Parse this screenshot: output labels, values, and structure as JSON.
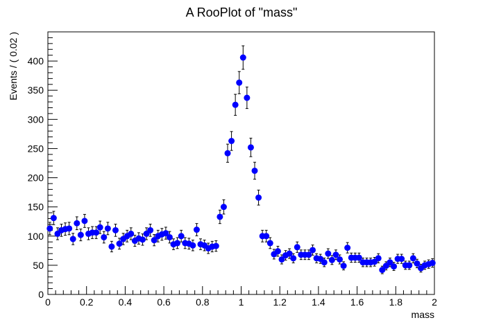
{
  "chart_data": {
    "type": "scatter",
    "title": "A RooPlot of \"mass\"",
    "xlabel": "mass",
    "ylabel": "Events / ( 0.02 )",
    "xlim": [
      0,
      2
    ],
    "ylim": [
      0,
      450
    ],
    "x_ticks": [
      "0",
      "0.2",
      "0.4",
      "0.6",
      "0.8",
      "1",
      "1.2",
      "1.4",
      "1.6",
      "1.8",
      "2"
    ],
    "y_ticks": [
      "0",
      "50",
      "100",
      "150",
      "200",
      "250",
      "300",
      "350",
      "400"
    ],
    "grid": false,
    "legend": "none",
    "marker_color": "#0000ff",
    "error_bar_color": "#000000",
    "series": [
      {
        "x": [
          0.01,
          0.03,
          0.05,
          0.07,
          0.09,
          0.11,
          0.13,
          0.15,
          0.17,
          0.19,
          0.21,
          0.23,
          0.25,
          0.27,
          0.29,
          0.31,
          0.33,
          0.35,
          0.37,
          0.39,
          0.41,
          0.43,
          0.45,
          0.47,
          0.49,
          0.51,
          0.53,
          0.55,
          0.57,
          0.59,
          0.61,
          0.63,
          0.65,
          0.67,
          0.69,
          0.71,
          0.73,
          0.75,
          0.77,
          0.79,
          0.81,
          0.83,
          0.85,
          0.87,
          0.89,
          0.91,
          0.93,
          0.95,
          0.97,
          0.99,
          1.01,
          1.03,
          1.05,
          1.07,
          1.09,
          1.11,
          1.13,
          1.15,
          1.17,
          1.19,
          1.21,
          1.23,
          1.25,
          1.27,
          1.29,
          1.31,
          1.33,
          1.35,
          1.37,
          1.39,
          1.41,
          1.43,
          1.45,
          1.47,
          1.49,
          1.51,
          1.53,
          1.55,
          1.57,
          1.59,
          1.61,
          1.63,
          1.65,
          1.67,
          1.69,
          1.71,
          1.73,
          1.75,
          1.77,
          1.79,
          1.81,
          1.83,
          1.85,
          1.87,
          1.89,
          1.91,
          1.93,
          1.95,
          1.97,
          1.99
        ],
        "y": [
          113,
          131,
          104,
          110,
          112,
          113,
          95,
          122,
          102,
          126,
          104,
          106,
          106,
          115,
          98,
          113,
          82,
          110,
          87,
          95,
          100,
          104,
          92,
          96,
          94,
          104,
          110,
          93,
          100,
          103,
          105,
          98,
          86,
          88,
          100,
          88,
          87,
          84,
          111,
          86,
          84,
          79,
          82,
          83,
          133,
          150,
          242,
          263,
          325,
          363,
          406,
          337,
          252,
          212,
          166,
          100,
          100,
          88,
          69,
          74,
          60,
          67,
          70,
          62,
          81,
          68,
          68,
          68,
          76,
          62,
          61,
          55,
          70,
          59,
          68,
          60,
          49,
          80,
          63,
          63,
          63,
          55,
          55,
          55,
          56,
          62,
          42,
          49,
          55,
          48,
          61,
          61,
          50,
          50,
          62,
          53,
          45,
          50,
          52,
          54
        ]
      }
    ]
  }
}
